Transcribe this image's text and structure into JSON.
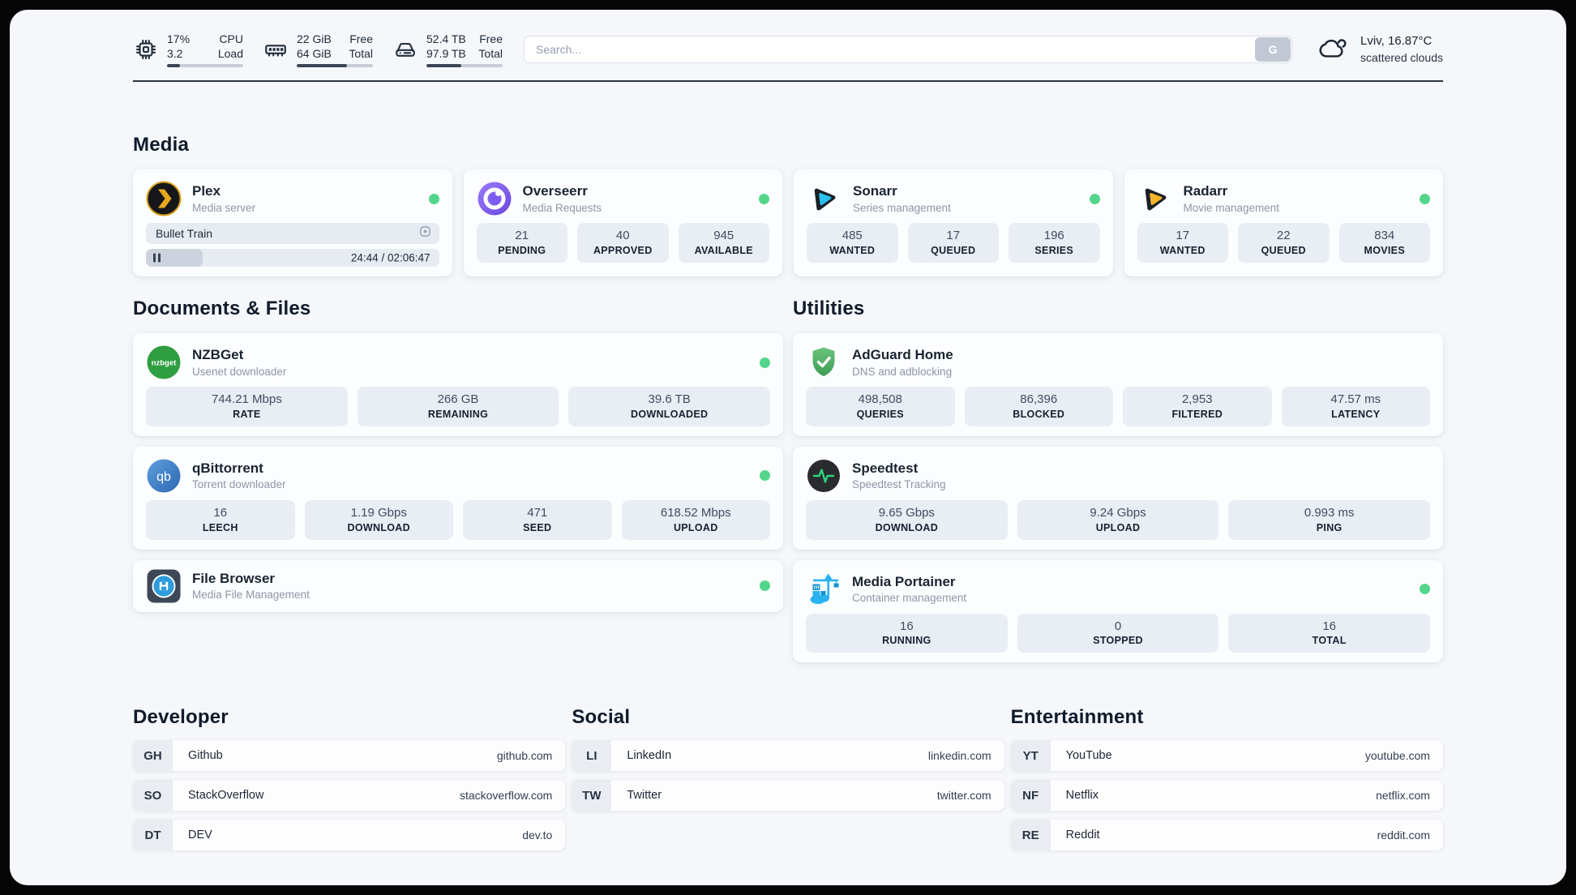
{
  "topbar": {
    "cpu": {
      "values": [
        "17%",
        "3.2"
      ],
      "labels": [
        "CPU",
        "Load"
      ],
      "percent": 17
    },
    "ram": {
      "values": [
        "22 GiB",
        "64 GiB"
      ],
      "labels": [
        "Free",
        "Total"
      ],
      "percent": 66
    },
    "disk": {
      "values": [
        "52.4 TB",
        "97.9 TB"
      ],
      "labels": [
        "Free",
        "Total"
      ],
      "percent": 46
    },
    "search": {
      "placeholder": "Search...",
      "button": "G"
    },
    "weather": {
      "location_temp": "Lviv, 16.87°C",
      "condition": "scattered clouds"
    }
  },
  "media": {
    "heading": "Media",
    "plex": {
      "name": "Plex",
      "description": "Media server",
      "now_playing": "Bullet Train",
      "time": "24:44 / 02:06:47",
      "progress_percent": 19.5
    },
    "overseerr": {
      "name": "Overseerr",
      "description": "Media Requests",
      "stats": [
        {
          "value": "21",
          "label": "PENDING"
        },
        {
          "value": "40",
          "label": "APPROVED"
        },
        {
          "value": "945",
          "label": "AVAILABLE"
        }
      ]
    },
    "sonarr": {
      "name": "Sonarr",
      "description": "Series management",
      "stats": [
        {
          "value": "485",
          "label": "WANTED"
        },
        {
          "value": "17",
          "label": "QUEUED"
        },
        {
          "value": "196",
          "label": "SERIES"
        }
      ]
    },
    "radarr": {
      "name": "Radarr",
      "description": "Movie management",
      "stats": [
        {
          "value": "17",
          "label": "WANTED"
        },
        {
          "value": "22",
          "label": "QUEUED"
        },
        {
          "value": "834",
          "label": "MOVIES"
        }
      ]
    }
  },
  "documents": {
    "heading": "Documents & Files",
    "nzbget": {
      "name": "NZBGet",
      "description": "Usenet downloader",
      "stats": [
        {
          "value": "744.21 Mbps",
          "label": "RATE"
        },
        {
          "value": "266 GB",
          "label": "REMAINING"
        },
        {
          "value": "39.6 TB",
          "label": "DOWNLOADED"
        }
      ]
    },
    "qbittorrent": {
      "name": "qBittorrent",
      "description": "Torrent downloader",
      "stats": [
        {
          "value": "16",
          "label": "LEECH"
        },
        {
          "value": "1.19 Gbps",
          "label": "DOWNLOAD"
        },
        {
          "value": "471",
          "label": "SEED"
        },
        {
          "value": "618.52 Mbps",
          "label": "UPLOAD"
        }
      ]
    },
    "filebrowser": {
      "name": "File Browser",
      "description": "Media File Management"
    }
  },
  "utilities": {
    "heading": "Utilities",
    "adguard": {
      "name": "AdGuard Home",
      "description": "DNS and adblocking",
      "stats": [
        {
          "value": "498,508",
          "label": "QUERIES"
        },
        {
          "value": "86,396",
          "label": "BLOCKED"
        },
        {
          "value": "2,953",
          "label": "FILTERED"
        },
        {
          "value": "47.57 ms",
          "label": "LATENCY"
        }
      ]
    },
    "speedtest": {
      "name": "Speedtest",
      "description": "Speedtest Tracking",
      "stats": [
        {
          "value": "9.65 Gbps",
          "label": "DOWNLOAD"
        },
        {
          "value": "9.24 Gbps",
          "label": "UPLOAD"
        },
        {
          "value": "0.993 ms",
          "label": "PING"
        }
      ]
    },
    "portainer": {
      "name": "Media Portainer",
      "description": "Container management",
      "stats": [
        {
          "value": "16",
          "label": "RUNNING"
        },
        {
          "value": "0",
          "label": "STOPPED"
        },
        {
          "value": "16",
          "label": "TOTAL"
        }
      ]
    }
  },
  "bookmarks": {
    "developer": {
      "heading": "Developer",
      "links": [
        {
          "abbr": "GH",
          "name": "Github",
          "domain": "github.com"
        },
        {
          "abbr": "SO",
          "name": "StackOverflow",
          "domain": "stackoverflow.com"
        },
        {
          "abbr": "DT",
          "name": "DEV",
          "domain": "dev.to"
        }
      ]
    },
    "social": {
      "heading": "Social",
      "links": [
        {
          "abbr": "LI",
          "name": "LinkedIn",
          "domain": "linkedin.com"
        },
        {
          "abbr": "TW",
          "name": "Twitter",
          "domain": "twitter.com"
        }
      ]
    },
    "entertainment": {
      "heading": "Entertainment",
      "links": [
        {
          "abbr": "YT",
          "name": "YouTube",
          "domain": "youtube.com"
        },
        {
          "abbr": "NF",
          "name": "Netflix",
          "domain": "netflix.com"
        },
        {
          "abbr": "RE",
          "name": "Reddit",
          "domain": "reddit.com"
        }
      ]
    }
  },
  "colors": {
    "status_green": "#53d68b",
    "page_bg": "#f5f7fa",
    "tile_bg": "#e9edf4",
    "progress_dark": "#3c4554"
  }
}
